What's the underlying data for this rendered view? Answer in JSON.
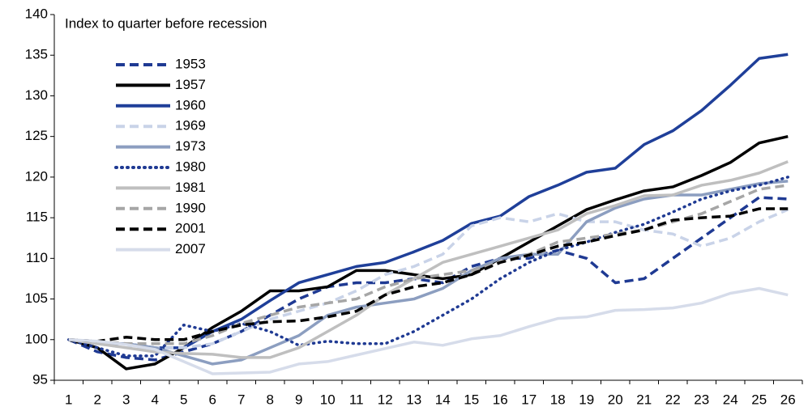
{
  "chart_data": {
    "type": "line",
    "title": "Index to quarter before recession",
    "categories": [
      1,
      2,
      3,
      4,
      5,
      6,
      7,
      8,
      9,
      10,
      11,
      12,
      13,
      14,
      15,
      16,
      17,
      18,
      19,
      20,
      21,
      22,
      23,
      24,
      25,
      26
    ],
    "ylim": [
      95,
      140
    ],
    "yticks": [
      95,
      100,
      105,
      110,
      115,
      120,
      125,
      130,
      135,
      140
    ],
    "series": [
      {
        "name": "1953",
        "color": "#1f3a93",
        "dash": "dashed",
        "values": [
          100,
          98.5,
          97.8,
          97.5,
          98.5,
          99.5,
          101,
          103,
          105,
          106.5,
          107,
          107,
          107.5,
          107,
          109,
          110,
          110,
          111,
          110,
          107,
          107.5,
          110,
          112.5,
          115,
          117.5,
          117.3
        ]
      },
      {
        "name": "1957",
        "color": "#000000",
        "dash": "solid",
        "values": [
          100,
          99,
          96.4,
          97,
          99,
          101.5,
          103.5,
          106,
          106,
          106.5,
          108.5,
          108.5,
          108,
          107.5,
          108,
          110,
          112,
          114,
          116,
          117.2,
          118.3,
          118.8,
          120.2,
          121.8,
          124.2,
          125
        ]
      },
      {
        "name": "1960",
        "color": "#1f3f99",
        "dash": "solid",
        "values": [
          100,
          99.5,
          99.5,
          99,
          99,
          101,
          102.5,
          104.8,
          107,
          108,
          109,
          109.5,
          110.8,
          112.2,
          114.3,
          115.2,
          117.6,
          119,
          120.6,
          121.1,
          124,
          125.7,
          128.2,
          131.3,
          134.6,
          135.1
        ]
      },
      {
        "name": "1969",
        "color": "#c9d3e8",
        "dash": "dashed",
        "values": [
          100,
          99.5,
          99,
          99,
          99,
          99.5,
          101,
          102.5,
          103.5,
          104.5,
          106,
          108,
          109,
          110.5,
          114,
          115,
          114.5,
          115.5,
          114.5,
          114.5,
          113.5,
          113,
          111.5,
          112.5,
          114.5,
          116
        ]
      },
      {
        "name": "1973",
        "color": "#8c9ec0",
        "dash": "solid",
        "values": [
          100,
          99.5,
          99.5,
          99,
          98,
          97,
          97.5,
          99,
          100.5,
          103,
          104,
          104.5,
          105,
          106.3,
          108.5,
          110,
          110.5,
          110.5,
          114.5,
          116.2,
          117.3,
          117.8,
          117.8,
          118.5,
          119.2,
          119.5
        ]
      },
      {
        "name": "1980",
        "color": "#1f3a93",
        "dash": "dotted",
        "values": [
          100,
          99,
          98,
          98,
          101.8,
          101,
          102,
          101,
          99.3,
          99.8,
          99.5,
          99.5,
          101,
          103,
          105,
          107.5,
          109.5,
          111,
          112,
          113.2,
          114.2,
          115.7,
          117.3,
          118.3,
          119,
          120
        ]
      },
      {
        "name": "1981",
        "color": "#bfbfbf",
        "dash": "solid",
        "values": [
          100,
          99.5,
          99,
          98.5,
          98.3,
          98.2,
          97.8,
          97.8,
          99,
          101,
          103,
          105.5,
          107.5,
          109.5,
          110.5,
          111.5,
          112.5,
          113.5,
          115.5,
          116.5,
          117.7,
          117.8,
          119,
          119.6,
          120.5,
          121.9
        ]
      },
      {
        "name": "1990",
        "color": "#a6a6a6",
        "dash": "dashed",
        "values": [
          100,
          99.8,
          99.5,
          99.5,
          99.5,
          100.5,
          102,
          103,
          104,
          104.5,
          105,
          106.5,
          107.5,
          108,
          108.5,
          109.5,
          110.5,
          112,
          112.5,
          113,
          113.5,
          114.5,
          115.5,
          117,
          118.5,
          119
        ]
      },
      {
        "name": "2001",
        "color": "#000000",
        "dash": "dashed",
        "values": [
          100,
          99.8,
          100.3,
          100,
          100,
          101,
          101.8,
          102.2,
          102.3,
          102.8,
          103.5,
          105.5,
          106.5,
          107,
          108,
          109.5,
          110.4,
          111.5,
          112,
          112.8,
          113.5,
          114.7,
          115,
          115.2,
          116.1,
          116.1
        ]
      },
      {
        "name": "2007",
        "color": "#d6dcea",
        "dash": "solid",
        "values": [
          100,
          99.8,
          99.4,
          98.8,
          97.3,
          95.8,
          95.9,
          96,
          97,
          97.3,
          98.1,
          98.9,
          99.7,
          99.3,
          100.1,
          100.5,
          101.6,
          102.6,
          102.8,
          103.6,
          103.7,
          103.9,
          104.5,
          105.7,
          106.3,
          105.5
        ]
      }
    ]
  }
}
